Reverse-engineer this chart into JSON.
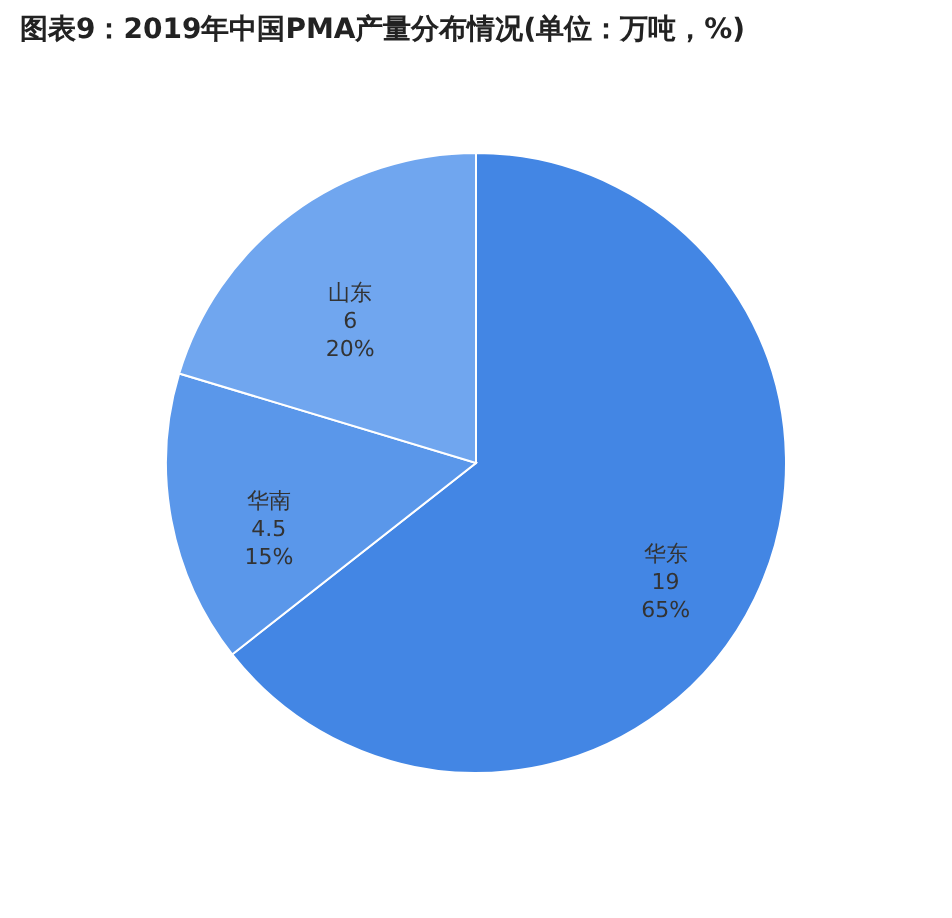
{
  "chart_data": {
    "type": "pie",
    "title": "图表9：2019年中国PMA产量分布情况(单位：万吨，%)",
    "categories": [
      "华东",
      "华南",
      "山东"
    ],
    "values": [
      19,
      4.5,
      6
    ],
    "value_labels": [
      "19\n65%",
      "4.5\n15%",
      "6\n20%"
    ],
    "colors": [
      "#4386e4",
      "#5a97ea",
      "#70a6ef"
    ],
    "legend": false
  }
}
